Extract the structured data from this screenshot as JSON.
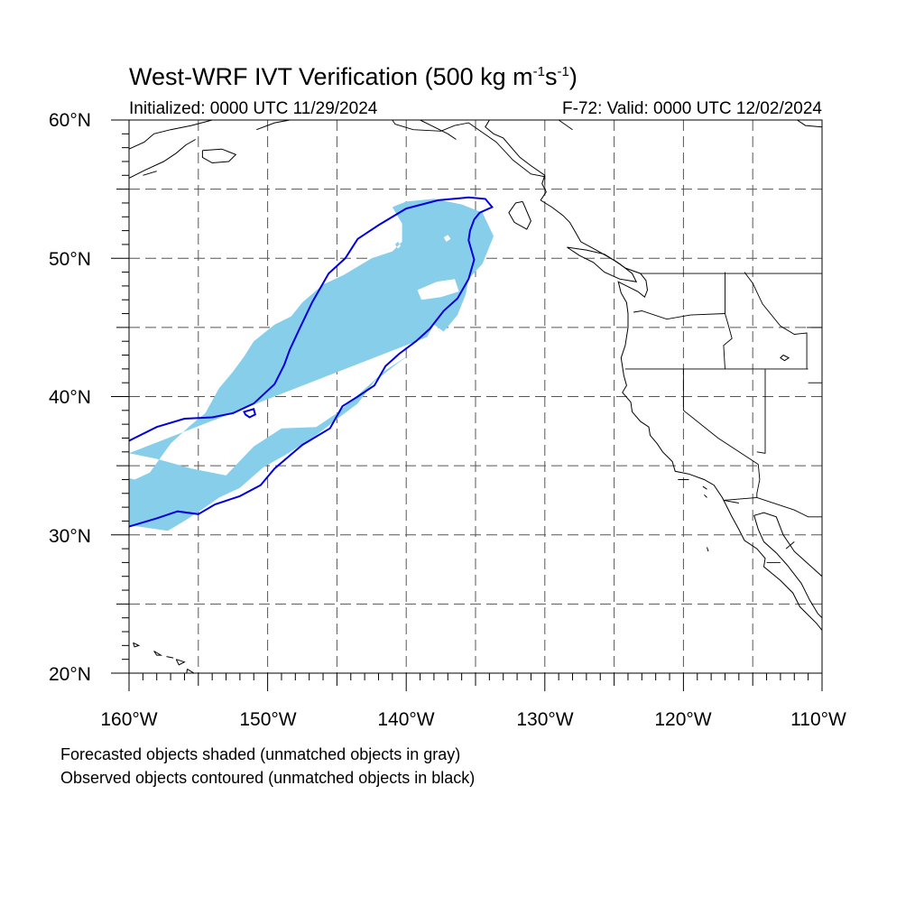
{
  "title": {
    "main": "West-WRF IVT Verification (500 kg m",
    "sup1": "-1",
    "mid": "s",
    "sup2": "-1",
    "end": ")"
  },
  "initialized": "Initialized: 0000 UTC 11/29/2024",
  "valid": "F-72: Valid: 0000 UTC 12/02/2024",
  "lat_labels": [
    "60°N",
    "50°N",
    "40°N",
    "30°N",
    "20°N"
  ],
  "lon_labels": [
    "160°W",
    "150°W",
    "140°W",
    "130°W",
    "120°W",
    "110°W"
  ],
  "notes": [
    "Forecasted objects shaded (unmatched objects in gray)",
    "Observed objects contoured (unmatched objects in black)"
  ],
  "map_extent": {
    "lon_min": -160,
    "lon_max": -110,
    "lat_min": 20,
    "lat_max": 60
  },
  "colors": {
    "forecast_fill": "#87ceeb",
    "observed_contour": "#0000dd",
    "coastline": "#000000",
    "gridline": "#555555"
  },
  "forecast_object": [
    [
      -160,
      35.9
    ],
    [
      -158,
      35.5
    ],
    [
      -155.5,
      34.8
    ],
    [
      -153,
      34.3
    ],
    [
      -151,
      36.4
    ],
    [
      -149,
      37.7
    ],
    [
      -146.5,
      37.8
    ],
    [
      -145,
      38.8
    ],
    [
      -143.5,
      40.1
    ],
    [
      -141.5,
      41.9
    ],
    [
      -139.5,
      43.2
    ],
    [
      -138.5,
      44.3
    ],
    [
      -138,
      45.2
    ],
    [
      -137.3,
      44.7
    ],
    [
      -136.3,
      45.9
    ],
    [
      -135.7,
      47.4
    ],
    [
      -135.5,
      48.5
    ],
    [
      -134.5,
      49.6
    ],
    [
      -133.7,
      51.6
    ],
    [
      -134.5,
      53.3
    ],
    [
      -136,
      53.9
    ],
    [
      -138,
      54.3
    ],
    [
      -140,
      54.1
    ],
    [
      -141,
      53.7
    ],
    [
      -140.3,
      52.5
    ],
    [
      -140.3,
      51.2
    ],
    [
      -141,
      50.5
    ],
    [
      -142.5,
      50.0
    ],
    [
      -144.5,
      48.8
    ],
    [
      -146,
      48.1
    ],
    [
      -147.5,
      46.8
    ],
    [
      -148.3,
      45.8
    ],
    [
      -149.5,
      45.2
    ],
    [
      -151,
      44.0
    ],
    [
      -151.7,
      42.9
    ],
    [
      -152.5,
      41.8
    ],
    [
      -153.5,
      40.6
    ],
    [
      -154.5,
      38.8
    ],
    [
      -155.6,
      37.9
    ],
    [
      -157,
      36.6
    ],
    [
      -158.5,
      34.5
    ],
    [
      -159.6,
      34.0
    ],
    [
      -160,
      34.1
    ],
    [
      -160,
      30.7
    ],
    [
      -157.2,
      30.3
    ],
    [
      -156,
      31.0
    ],
    [
      -154.5,
      32.0
    ],
    [
      -153.5,
      32.7
    ],
    [
      -152,
      33.4
    ],
    [
      -150.3,
      34.9
    ],
    [
      -148.5,
      35.9
    ],
    [
      -146.5,
      37.2
    ],
    [
      -145.1,
      38.3
    ],
    [
      -143.5,
      39.5
    ],
    [
      -142.3,
      41.1
    ],
    [
      -140.5,
      42.5
    ],
    [
      -139.5,
      43.2
    ],
    [
      -138.5,
      44.3
    ]
  ],
  "forecast_holes": [
    [
      [
        -139.2,
        47.7
      ],
      [
        -137.8,
        48.3
      ],
      [
        -136.5,
        48.5
      ],
      [
        -136.2,
        47.6
      ],
      [
        -137.5,
        47.2
      ],
      [
        -138.9,
        47.0
      ]
    ],
    [
      [
        -137.3,
        51.5
      ],
      [
        -137.0,
        51.7
      ],
      [
        -136.8,
        51.4
      ],
      [
        -137.1,
        51.2
      ]
    ],
    [
      [
        -140.6,
        51.2
      ],
      [
        -140.4,
        50.9
      ],
      [
        -140.6,
        50.7
      ],
      [
        -140.8,
        51.0
      ]
    ]
  ],
  "observed_object": [
    [
      -160,
      36.8
    ],
    [
      -158,
      37.8
    ],
    [
      -156,
      38.4
    ],
    [
      -154,
      38.5
    ],
    [
      -152.5,
      38.8
    ],
    [
      -151,
      39.5
    ],
    [
      -149.5,
      40.9
    ],
    [
      -148.8,
      42.3
    ],
    [
      -148.4,
      43.4
    ],
    [
      -147.7,
      44.9
    ],
    [
      -146.8,
      46.8
    ],
    [
      -145.6,
      48.9
    ],
    [
      -144.4,
      50.0
    ],
    [
      -143.5,
      51.4
    ],
    [
      -142.0,
      52.4
    ],
    [
      -140.0,
      53.6
    ],
    [
      -137.7,
      54.2
    ],
    [
      -135.5,
      54.4
    ],
    [
      -134.3,
      54.3
    ],
    [
      -133.8,
      53.7
    ],
    [
      -134.7,
      53.3
    ],
    [
      -135.1,
      52.8
    ],
    [
      -135.4,
      52.0
    ],
    [
      -135.5,
      51.3
    ],
    [
      -135.1,
      49.9
    ],
    [
      -135.5,
      48.5
    ],
    [
      -136.3,
      47.1
    ],
    [
      -137.3,
      46.2
    ],
    [
      -138.3,
      44.9
    ],
    [
      -139.3,
      44.0
    ],
    [
      -140.5,
      43.1
    ],
    [
      -141.5,
      42.2
    ],
    [
      -142.3,
      40.8
    ],
    [
      -143.5,
      40.0
    ],
    [
      -144.6,
      39.3
    ],
    [
      -145.5,
      37.7
    ],
    [
      -147.5,
      36.5
    ],
    [
      -149.5,
      34.8
    ],
    [
      -150.5,
      33.6
    ],
    [
      -152.0,
      32.8
    ],
    [
      -153.8,
      32.2
    ],
    [
      -155.0,
      31.5
    ],
    [
      -156.5,
      31.7
    ],
    [
      -158.0,
      31.2
    ],
    [
      -160,
      30.6
    ]
  ],
  "observed_loop": [
    [
      -151.7,
      38.9
    ],
    [
      -151.0,
      39.1
    ],
    [
      -150.9,
      38.7
    ],
    [
      -151.3,
      38.5
    ],
    [
      -151.6,
      38.7
    ]
  ],
  "coastlines": [
    [
      [
        -134,
        60
      ],
      [
        -134.3,
        59.5
      ],
      [
        -133.7,
        59
      ],
      [
        -133.0,
        58.7
      ],
      [
        -132.4,
        58.0
      ],
      [
        -131.8,
        57.3
      ],
      [
        -131.0,
        56.7
      ],
      [
        -130.0,
        56.0
      ],
      [
        -130.2,
        55.4
      ],
      [
        -129.9,
        54.8
      ],
      [
        -130.3,
        54.2
      ],
      [
        -129.5,
        53.7
      ],
      [
        -128.7,
        53.1
      ],
      [
        -128.2,
        52.6
      ],
      [
        -127.8,
        51.9
      ],
      [
        -127.4,
        51.2
      ],
      [
        -126.3,
        50.6
      ],
      [
        -125.6,
        50.2
      ],
      [
        -124.9,
        49.8
      ],
      [
        -124.2,
        49.3
      ],
      [
        -123.1,
        48.9
      ],
      [
        -122.7,
        48.4
      ],
      [
        -122.6,
        47.7
      ],
      [
        -122.8,
        47.2
      ],
      [
        -123.3,
        47.6
      ],
      [
        -123.9,
        47.9
      ],
      [
        -124.7,
        48.3
      ],
      [
        -124.5,
        47.5
      ],
      [
        -124.1,
        46.8
      ],
      [
        -124.0,
        46.0
      ],
      [
        -124.0,
        45.0
      ],
      [
        -124.2,
        43.7
      ],
      [
        -124.5,
        42.8
      ],
      [
        -124.3,
        41.5
      ],
      [
        -124.1,
        40.8
      ],
      [
        -124.4,
        40.3
      ],
      [
        -123.8,
        39.6
      ],
      [
        -123.7,
        38.9
      ],
      [
        -123.1,
        38.2
      ],
      [
        -122.5,
        37.8
      ],
      [
        -122.4,
        37.2
      ],
      [
        -121.9,
        36.6
      ],
      [
        -121.5,
        36.0
      ],
      [
        -120.8,
        35.3
      ],
      [
        -120.6,
        34.6
      ],
      [
        -119.6,
        34.4
      ],
      [
        -118.5,
        34.0
      ],
      [
        -117.8,
        33.6
      ],
      [
        -117.2,
        32.7
      ],
      [
        -116.8,
        31.9
      ],
      [
        -116.5,
        31.3
      ],
      [
        -116.0,
        30.4
      ],
      [
        -115.6,
        29.6
      ],
      [
        -114.7,
        29.0
      ],
      [
        -114.1,
        28.3
      ],
      [
        -114.2,
        27.7
      ],
      [
        -113.0,
        26.7
      ],
      [
        -112.1,
        25.8
      ],
      [
        -111.6,
        24.8
      ],
      [
        -110.4,
        23.6
      ],
      [
        -110,
        23.1
      ]
    ],
    [
      [
        -110,
        27.0
      ],
      [
        -111.0,
        27.9
      ],
      [
        -112.0,
        28.8
      ],
      [
        -112.8,
        30.0
      ],
      [
        -113.3,
        31.3
      ],
      [
        -114.2,
        31.6
      ],
      [
        -114.9,
        31.4
      ],
      [
        -114.6,
        30.4
      ],
      [
        -114.2,
        29.5
      ],
      [
        -113.3,
        28.7
      ],
      [
        -112.5,
        27.8
      ],
      [
        -111.5,
        26.5
      ],
      [
        -110.9,
        25.3
      ],
      [
        -110.3,
        24.3
      ],
      [
        -110,
        24.0
      ]
    ],
    [
      [
        -128.4,
        50.8
      ],
      [
        -127.5,
        50.2
      ],
      [
        -126.5,
        49.7
      ],
      [
        -125.7,
        49.0
      ],
      [
        -124.6,
        48.5
      ],
      [
        -123.4,
        48.3
      ],
      [
        -123.7,
        48.9
      ],
      [
        -124.6,
        49.6
      ],
      [
        -125.7,
        50.3
      ],
      [
        -127.0,
        50.6
      ],
      [
        -128.4,
        50.8
      ]
    ],
    [
      [
        -131.6,
        54.1
      ],
      [
        -132.1,
        54.0
      ],
      [
        -132.6,
        53.3
      ],
      [
        -132.2,
        52.6
      ],
      [
        -131.3,
        52.1
      ],
      [
        -131.0,
        52.7
      ],
      [
        -131.6,
        54.1
      ]
    ],
    [
      [
        -160,
        57.9
      ],
      [
        -158.9,
        58.4
      ],
      [
        -158.2,
        59.0
      ],
      [
        -157.0,
        59.3
      ],
      [
        -155.5,
        59.6
      ],
      [
        -154.0,
        60
      ]
    ],
    [
      [
        -160,
        55.8
      ],
      [
        -158.8,
        56.4
      ],
      [
        -157.5,
        57.0
      ],
      [
        -156.6,
        57.6
      ],
      [
        -155.9,
        58.2
      ],
      [
        -155.2,
        58.6
      ]
    ],
    [
      [
        -159.0,
        56.0
      ],
      [
        -158.0,
        56.3
      ]
    ],
    [
      [
        -154.7,
        57.8
      ],
      [
        -153.3,
        57.9
      ],
      [
        -152.3,
        57.5
      ],
      [
        -152.8,
        57.0
      ],
      [
        -154.0,
        56.9
      ],
      [
        -154.7,
        57.3
      ],
      [
        -154.7,
        57.8
      ]
    ],
    [
      [
        -150.8,
        59.3
      ],
      [
        -149.5,
        59.8
      ],
      [
        -148.4,
        60
      ]
    ],
    [
      [
        -139.0,
        60
      ],
      [
        -138.2,
        59.6
      ],
      [
        -137.0,
        59.0
      ],
      [
        -136.4,
        58.6
      ]
    ],
    [
      [
        -111.8,
        60
      ],
      [
        -111.2,
        59.6
      ],
      [
        -110,
        59.5
      ]
    ],
    [
      [
        -155.8,
        20.3
      ],
      [
        -155.0,
        19.8
      ],
      [
        -155.9,
        19.6
      ],
      [
        -155.8,
        20.3
      ]
    ],
    [
      [
        -156.6,
        21.0
      ],
      [
        -156.0,
        20.8
      ],
      [
        -156.4,
        20.6
      ],
      [
        -156.6,
        21.0
      ]
    ],
    [
      [
        -157.3,
        21.2
      ],
      [
        -156.8,
        21.1
      ]
    ],
    [
      [
        -158.2,
        21.6
      ],
      [
        -157.7,
        21.3
      ],
      [
        -158.0,
        21.3
      ],
      [
        -158.2,
        21.6
      ]
    ],
    [
      [
        -159.7,
        22.2
      ],
      [
        -159.3,
        22.0
      ],
      [
        -159.6,
        21.9
      ],
      [
        -159.7,
        22.2
      ]
    ],
    [
      [
        -120.4,
        34.0
      ],
      [
        -119.6,
        34.0
      ]
    ],
    [
      [
        -118.6,
        33.5
      ],
      [
        -118.3,
        33.3
      ]
    ],
    [
      [
        -118.5,
        32.9
      ],
      [
        -118.3,
        32.7
      ]
    ],
    [
      [
        -118.3,
        29.1
      ],
      [
        -118.2,
        28.8
      ]
    ],
    [
      [
        -112.8,
        43.0
      ],
      [
        -112.4,
        42.8
      ],
      [
        -112.7,
        42.6
      ],
      [
        -113.0,
        42.8
      ],
      [
        -112.8,
        43.0
      ]
    ]
  ],
  "borders": [
    [
      [
        -141,
        60
      ],
      [
        -140.8,
        59.7
      ],
      [
        -139.5,
        59.3
      ],
      [
        -137.5,
        59.2
      ],
      [
        -136.5,
        59.6
      ],
      [
        -135.5,
        59.8
      ],
      [
        -133.5,
        58.4
      ],
      [
        -132.3,
        57.1
      ],
      [
        -131.0,
        56.1
      ],
      [
        -130.0,
        55.9
      ],
      [
        -130.0,
        55.3
      ]
    ],
    [
      [
        -123.1,
        48.9
      ],
      [
        -110,
        48.9
      ]
    ],
    [
      [
        -124.2,
        42.0
      ],
      [
        -111.0,
        42.0
      ]
    ],
    [
      [
        -117.0,
        49.0
      ],
      [
        -117.0,
        46.0
      ],
      [
        -116.8,
        45.3
      ],
      [
        -116.5,
        44.2
      ],
      [
        -117.1,
        43.7
      ],
      [
        -117.0,
        42.0
      ]
    ],
    [
      [
        -123.6,
        46.1
      ],
      [
        -123.0,
        46.2
      ],
      [
        -121.2,
        45.6
      ],
      [
        -119.5,
        45.9
      ],
      [
        -117.0,
        46.0
      ]
    ],
    [
      [
        -120.0,
        42.0
      ],
      [
        -120.0,
        39.0
      ],
      [
        -117.5,
        37.0
      ],
      [
        -114.6,
        35.1
      ]
    ],
    [
      [
        -114.1,
        42.0
      ],
      [
        -114.1,
        35.9
      ],
      [
        -114.7,
        36.0
      ]
    ],
    [
      [
        -115.6,
        49.0
      ],
      [
        -115.0,
        48.2
      ],
      [
        -114.3,
        46.7
      ],
      [
        -113.0,
        45.1
      ],
      [
        -112.0,
        44.5
      ],
      [
        -111.1,
        44.6
      ],
      [
        -111.1,
        42.0
      ]
    ],
    [
      [
        -111.1,
        45.0
      ],
      [
        -110,
        45.0
      ]
    ],
    [
      [
        -111.0,
        41.0
      ],
      [
        -110,
        41.0
      ]
    ],
    [
      [
        -114.6,
        35.1
      ],
      [
        -114.5,
        34.0
      ],
      [
        -114.7,
        33.0
      ],
      [
        -114.7,
        32.7
      ],
      [
        -117.1,
        32.5
      ]
    ],
    [
      [
        -114.7,
        32.7
      ],
      [
        -112.0,
        31.8
      ],
      [
        -111.0,
        31.3
      ],
      [
        -110,
        31.3
      ]
    ],
    [
      [
        -117.1,
        32.5
      ],
      [
        -116.0,
        32.3
      ]
    ],
    [
      [
        -114.0,
        28.0
      ],
      [
        -113.0,
        28.0
      ]
    ],
    [
      [
        -112.6,
        29.0
      ],
      [
        -112.0,
        29.5
      ]
    ],
    [
      [
        -129.0,
        60
      ],
      [
        -128.0,
        59.3
      ]
    ]
  ]
}
